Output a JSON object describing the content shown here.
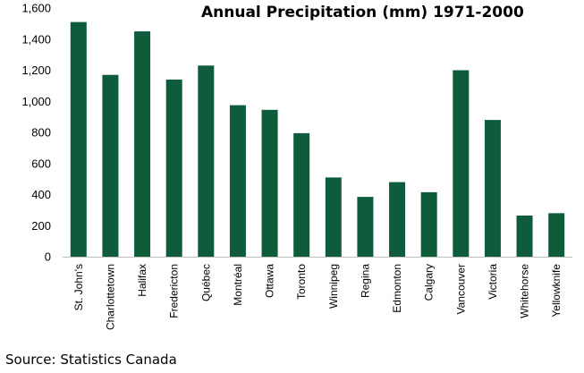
{
  "chart_data": {
    "type": "bar",
    "title": "Annual Precipitation (mm) 1971-2000",
    "source": "Source: Statistics Canada",
    "categories": [
      "St. John's",
      "Charlottetown",
      "Halifax",
      "Fredericton",
      "Québec",
      "Montréal",
      "Ottawa",
      "Toronto",
      "Winnipeg",
      "Regina",
      "Edmonton",
      "Calgary",
      "Vancouver",
      "Victoria",
      "Whitehorse",
      "Yellowknife"
    ],
    "values": [
      1510,
      1170,
      1450,
      1140,
      1230,
      975,
      945,
      795,
      510,
      385,
      480,
      415,
      1200,
      880,
      265,
      280
    ],
    "y_ticks": [
      "0",
      "200",
      "400",
      "600",
      "800",
      "1,000",
      "1,200",
      "1,400",
      "1,600"
    ],
    "ylim": [
      0,
      1600
    ],
    "bar_color": "#0e5c3c",
    "grid": false,
    "legend": "none"
  }
}
